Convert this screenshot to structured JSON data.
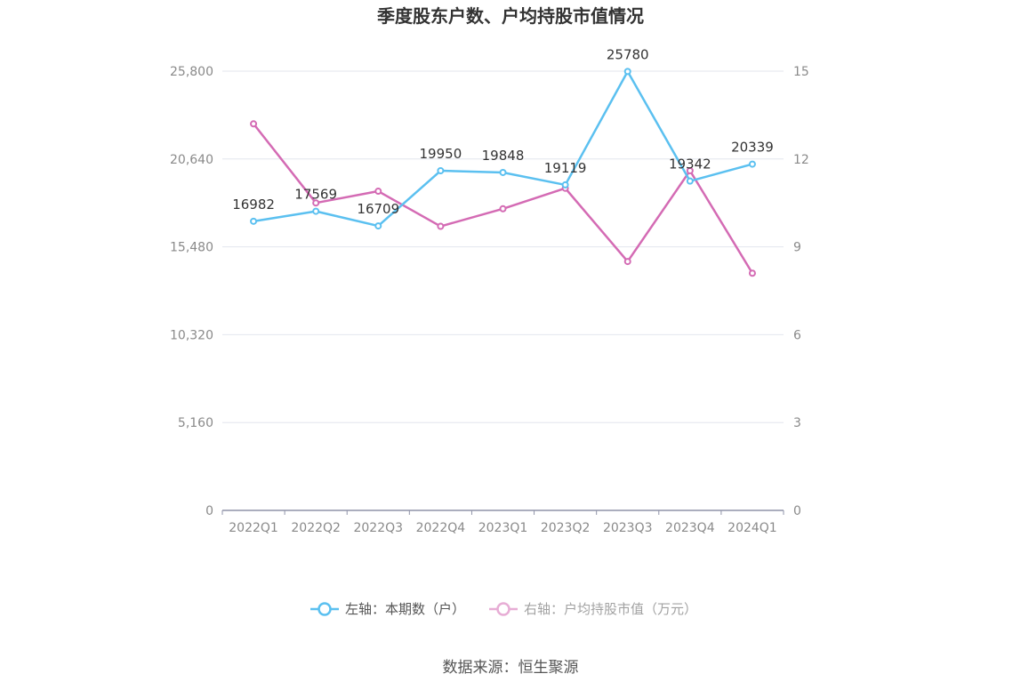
{
  "title": "季度股东户数、户均持股市值情况",
  "source": "数据来源：恒生聚源",
  "colors": {
    "series_left": "#5bc0f0",
    "series_right": "#d46bb4",
    "grid": "#e3e6ee",
    "axis": "#8f93a8"
  },
  "chart_data": {
    "type": "line",
    "title": "季度股东户数、户均持股市值情况",
    "categories": [
      "2022Q1",
      "2022Q2",
      "2022Q3",
      "2022Q4",
      "2023Q1",
      "2023Q2",
      "2023Q3",
      "2023Q4",
      "2024Q1"
    ],
    "y_left": {
      "ticks": [
        "0",
        "5,160",
        "10,320",
        "15,480",
        "20,640",
        "25,800"
      ],
      "range": [
        0,
        25800
      ]
    },
    "y_right": {
      "ticks": [
        "0",
        "3",
        "6",
        "9",
        "12",
        "15"
      ],
      "range": [
        0,
        15
      ]
    },
    "grid": true,
    "legend_position": "bottom",
    "series": [
      {
        "name": "左轴：本期数（户）",
        "axis": "left",
        "color": "#5bc0f0",
        "values": [
          16982,
          17569,
          16709,
          19950,
          19848,
          19119,
          25780,
          19342,
          20339
        ],
        "labels": [
          "16982",
          "17569",
          "16709",
          "19950",
          "19848",
          "19119",
          "25780",
          "19342",
          "20339"
        ]
      },
      {
        "name": "右轴：户均持股市值（万元）",
        "axis": "right",
        "color": "#d46bb4",
        "values": [
          13.2,
          10.5,
          10.9,
          9.7,
          10.3,
          11.0,
          8.5,
          11.6,
          8.1
        ]
      }
    ]
  }
}
